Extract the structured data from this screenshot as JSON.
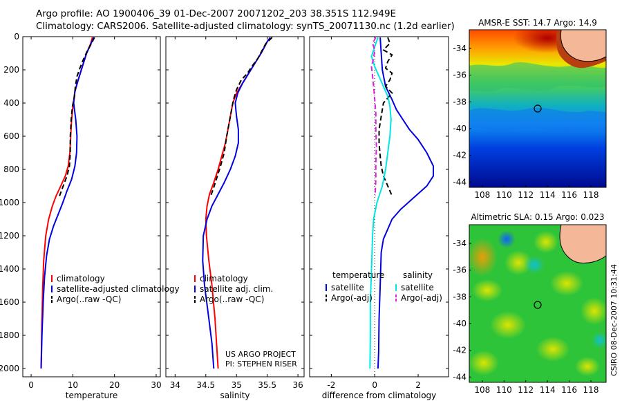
{
  "header": {
    "line1": "Argo profile: AO 1900406_39 01-Dec-2007 20071202_203 38.351S 112.949E",
    "line2": "Climatology: CARS2006. Satellite-adjusted climatology: synTS_20071130.nc (1.2d earlier)"
  },
  "credits": {
    "project": "US ARGO PROJECT",
    "pi": "PI: STEPHEN RISER",
    "stamp": "CSIRO 08-Dec-2007 10:31:44"
  },
  "colors": {
    "climatology": "#ff0000",
    "satellite": "#0000e0",
    "argo": "#000000",
    "satellite_sal": "#00e5e5",
    "argo_sal": "#e020e0"
  },
  "chart_data": [
    {
      "id": "temperature",
      "type": "line",
      "xlabel": "temperature",
      "ylabel": "",
      "xlim": [
        -2,
        31
      ],
      "ylim": [
        2050,
        0
      ],
      "xticks": [
        0,
        10,
        20,
        30
      ],
      "yticks": [
        0,
        200,
        400,
        600,
        800,
        1000,
        1200,
        1400,
        1600,
        1800,
        2000
      ],
      "legend": [
        "climatology",
        "satellite-adjusted climatology",
        "Argo(..raw -QC)"
      ],
      "series": [
        {
          "name": "climatology",
          "color": "#ff0000",
          "style": "solid",
          "points": [
            [
              14.7,
              5
            ],
            [
              14.3,
              40
            ],
            [
              13.3,
              100
            ],
            [
              12.3,
              180
            ],
            [
              11.3,
              260
            ],
            [
              10.5,
              330
            ],
            [
              10.1,
              400
            ],
            [
              9.7,
              500
            ],
            [
              9.5,
              600
            ],
            [
              9.3,
              700
            ],
            [
              8.9,
              780
            ],
            [
              8.2,
              840
            ],
            [
              7.1,
              900
            ],
            [
              6.0,
              960
            ],
            [
              5.1,
              1020
            ],
            [
              4.2,
              1100
            ],
            [
              3.5,
              1200
            ],
            [
              3.0,
              1350
            ],
            [
              2.8,
              1500
            ],
            [
              2.6,
              1700
            ],
            [
              2.4,
              2000
            ]
          ]
        },
        {
          "name": "satellite-adjusted climatology",
          "color": "#0000e0",
          "style": "solid",
          "points": [
            [
              15.0,
              5
            ],
            [
              14.4,
              40
            ],
            [
              13.3,
              100
            ],
            [
              12.3,
              180
            ],
            [
              11.3,
              260
            ],
            [
              10.5,
              330
            ],
            [
              10.2,
              400
            ],
            [
              10.7,
              500
            ],
            [
              11.0,
              600
            ],
            [
              10.9,
              700
            ],
            [
              10.5,
              780
            ],
            [
              9.7,
              860
            ],
            [
              8.6,
              930
            ],
            [
              7.6,
              1000
            ],
            [
              6.5,
              1070
            ],
            [
              5.4,
              1140
            ],
            [
              4.4,
              1220
            ],
            [
              3.7,
              1320
            ],
            [
              3.2,
              1450
            ],
            [
              2.9,
              1600
            ],
            [
              2.6,
              1800
            ],
            [
              2.4,
              2000
            ]
          ]
        },
        {
          "name": "Argo(..raw -QC)",
          "color": "#000000",
          "style": "dashed",
          "points": [
            [
              15.2,
              5
            ],
            [
              14.5,
              40
            ],
            [
              13.4,
              90
            ],
            [
              12.5,
              140
            ],
            [
              11.7,
              190
            ],
            [
              11.0,
              240
            ],
            [
              10.6,
              300
            ],
            [
              10.4,
              360
            ],
            [
              9.9,
              420
            ],
            [
              9.6,
              500
            ],
            [
              9.4,
              600
            ],
            [
              9.4,
              700
            ],
            [
              9.2,
              780
            ],
            [
              8.6,
              840
            ],
            [
              7.7,
              900
            ],
            [
              6.8,
              960
            ]
          ]
        }
      ]
    },
    {
      "id": "salinity",
      "type": "line",
      "xlabel": "salinity",
      "ylabel": "",
      "xlim": [
        33.85,
        36.1
      ],
      "ylim": [
        2050,
        0
      ],
      "xticks": [
        34,
        34.5,
        35,
        35.5,
        36
      ],
      "legend": [
        "climatology",
        "satellite adj. clim.",
        "Argo(..raw -QC)"
      ],
      "series": [
        {
          "name": "climatology",
          "color": "#ff0000",
          "style": "solid",
          "points": [
            [
              35.55,
              5
            ],
            [
              35.5,
              30
            ],
            [
              35.4,
              100
            ],
            [
              35.3,
              160
            ],
            [
              35.2,
              220
            ],
            [
              35.1,
              280
            ],
            [
              35.0,
              340
            ],
            [
              34.94,
              400
            ],
            [
              34.9,
              480
            ],
            [
              34.86,
              560
            ],
            [
              34.82,
              640
            ],
            [
              34.76,
              720
            ],
            [
              34.7,
              800
            ],
            [
              34.63,
              880
            ],
            [
              34.56,
              950
            ],
            [
              34.52,
              1020
            ],
            [
              34.5,
              1100
            ],
            [
              34.51,
              1200
            ],
            [
              34.55,
              1350
            ],
            [
              34.6,
              1500
            ],
            [
              34.65,
              1700
            ],
            [
              34.7,
              2000
            ]
          ]
        },
        {
          "name": "satellite adj. clim.",
          "color": "#0000e0",
          "style": "solid",
          "points": [
            [
              35.55,
              5
            ],
            [
              35.5,
              30
            ],
            [
              35.4,
              100
            ],
            [
              35.3,
              160
            ],
            [
              35.2,
              220
            ],
            [
              35.1,
              280
            ],
            [
              35.02,
              340
            ],
            [
              34.98,
              400
            ],
            [
              35.0,
              480
            ],
            [
              35.03,
              560
            ],
            [
              35.03,
              640
            ],
            [
              34.98,
              720
            ],
            [
              34.9,
              800
            ],
            [
              34.8,
              880
            ],
            [
              34.7,
              950
            ],
            [
              34.6,
              1020
            ],
            [
              34.52,
              1100
            ],
            [
              34.46,
              1200
            ],
            [
              34.45,
              1350
            ],
            [
              34.48,
              1500
            ],
            [
              34.55,
              1700
            ],
            [
              34.6,
              1850
            ],
            [
              34.63,
              2000
            ]
          ]
        },
        {
          "name": "Argo(..raw -QC)",
          "color": "#000000",
          "style": "dashed",
          "points": [
            [
              35.58,
              5
            ],
            [
              35.48,
              40
            ],
            [
              35.42,
              80
            ],
            [
              35.35,
              130
            ],
            [
              35.25,
              180
            ],
            [
              35.18,
              220
            ],
            [
              35.08,
              260
            ],
            [
              35.0,
              320
            ],
            [
              34.95,
              380
            ],
            [
              34.92,
              440
            ],
            [
              34.88,
              520
            ],
            [
              34.84,
              600
            ],
            [
              34.8,
              700
            ],
            [
              34.74,
              780
            ],
            [
              34.68,
              850
            ],
            [
              34.62,
              920
            ],
            [
              34.58,
              960
            ]
          ]
        }
      ]
    },
    {
      "id": "difference",
      "type": "line",
      "xlabel": "difference from climatology",
      "ylabel": "",
      "xlim": [
        -3,
        3.4
      ],
      "ylim": [
        2050,
        0
      ],
      "xticks": [
        -2,
        0,
        2
      ],
      "legend_titles": [
        "temperature",
        "salinity"
      ],
      "legend": [
        "satellite",
        "Argo(-adj)",
        "satellite",
        "Argo(-adj)"
      ],
      "series": [
        {
          "name": "satellite",
          "group": "temperature",
          "color": "#0000e0",
          "style": "solid",
          "points": [
            [
              0.25,
              5
            ],
            [
              0.3,
              100
            ],
            [
              0.35,
              200
            ],
            [
              0.5,
              300
            ],
            [
              0.8,
              380
            ],
            [
              1.0,
              440
            ],
            [
              1.3,
              500
            ],
            [
              1.6,
              560
            ],
            [
              2.0,
              620
            ],
            [
              2.4,
              700
            ],
            [
              2.7,
              780
            ],
            [
              2.7,
              840
            ],
            [
              2.4,
              900
            ],
            [
              1.8,
              970
            ],
            [
              1.2,
              1040
            ],
            [
              0.8,
              1100
            ],
            [
              0.6,
              1160
            ],
            [
              0.4,
              1220
            ],
            [
              0.3,
              1300
            ],
            [
              0.25,
              1500
            ],
            [
              0.2,
              1700
            ],
            [
              0.18,
              1900
            ],
            [
              0.15,
              2000
            ]
          ]
        },
        {
          "name": "Argo(-adj)",
          "group": "temperature",
          "color": "#000000",
          "style": "dashed",
          "points": [
            [
              0.6,
              5
            ],
            [
              0.7,
              40
            ],
            [
              0.4,
              80
            ],
            [
              0.8,
              110
            ],
            [
              0.6,
              150
            ],
            [
              0.5,
              190
            ],
            [
              0.8,
              220
            ],
            [
              0.7,
              260
            ],
            [
              0.5,
              300
            ],
            [
              0.8,
              340
            ],
            [
              0.4,
              400
            ],
            [
              0.3,
              480
            ],
            [
              0.2,
              560
            ],
            [
              0.2,
              640
            ],
            [
              0.25,
              720
            ],
            [
              0.3,
              780
            ],
            [
              0.4,
              840
            ],
            [
              0.6,
              900
            ],
            [
              0.8,
              960
            ]
          ]
        },
        {
          "name": "satellite",
          "group": "salinity",
          "color": "#00e5e5",
          "style": "solid",
          "points": [
            [
              0.15,
              5
            ],
            [
              0.0,
              60
            ],
            [
              -0.15,
              120
            ],
            [
              0.0,
              180
            ],
            [
              0.2,
              240
            ],
            [
              0.4,
              300
            ],
            [
              0.6,
              360
            ],
            [
              0.7,
              420
            ],
            [
              0.75,
              500
            ],
            [
              0.7,
              600
            ],
            [
              0.6,
              700
            ],
            [
              0.5,
              800
            ],
            [
              0.35,
              900
            ],
            [
              0.1,
              1000
            ],
            [
              -0.05,
              1100
            ],
            [
              -0.1,
              1200
            ],
            [
              -0.15,
              1400
            ],
            [
              -0.2,
              1600
            ],
            [
              -0.2,
              1800
            ],
            [
              -0.22,
              2000
            ]
          ]
        },
        {
          "name": "Argo(-adj)",
          "group": "salinity",
          "color": "#e020e0",
          "style": "dashed",
          "points": [
            [
              0.05,
              5
            ],
            [
              -0.1,
              40
            ],
            [
              0.0,
              80
            ],
            [
              -0.05,
              130
            ],
            [
              -0.15,
              180
            ],
            [
              -0.1,
              240
            ],
            [
              -0.05,
              300
            ],
            [
              0.0,
              380
            ],
            [
              0.05,
              460
            ],
            [
              0.05,
              560
            ],
            [
              0.08,
              660
            ],
            [
              0.05,
              760
            ],
            [
              0.05,
              860
            ],
            [
              0.02,
              960
            ]
          ]
        }
      ]
    },
    {
      "id": "sst_map",
      "type": "heatmap",
      "title": "AMSR-E SST: 14.7 Argo: 14.9",
      "xticks": [
        108,
        110,
        112,
        114,
        116,
        118
      ],
      "yticks": [
        -34,
        -36,
        -38,
        -40,
        -42,
        -44
      ],
      "xlim": [
        106.8,
        119.4
      ],
      "ylim": [
        -44.4,
        -32.6
      ],
      "argo_position": [
        112.95,
        -38.35
      ]
    },
    {
      "id": "sla_map",
      "type": "heatmap",
      "title": "Altimetric SLA: 0.15 Argo: 0.023",
      "xticks": [
        108,
        110,
        112,
        114,
        116,
        118
      ],
      "yticks": [
        -34,
        -36,
        -38,
        -40,
        -42,
        -44
      ],
      "xlim": [
        106.8,
        119.4
      ],
      "ylim": [
        -44.4,
        -32.6
      ],
      "argo_position": [
        112.95,
        -38.35
      ]
    }
  ]
}
